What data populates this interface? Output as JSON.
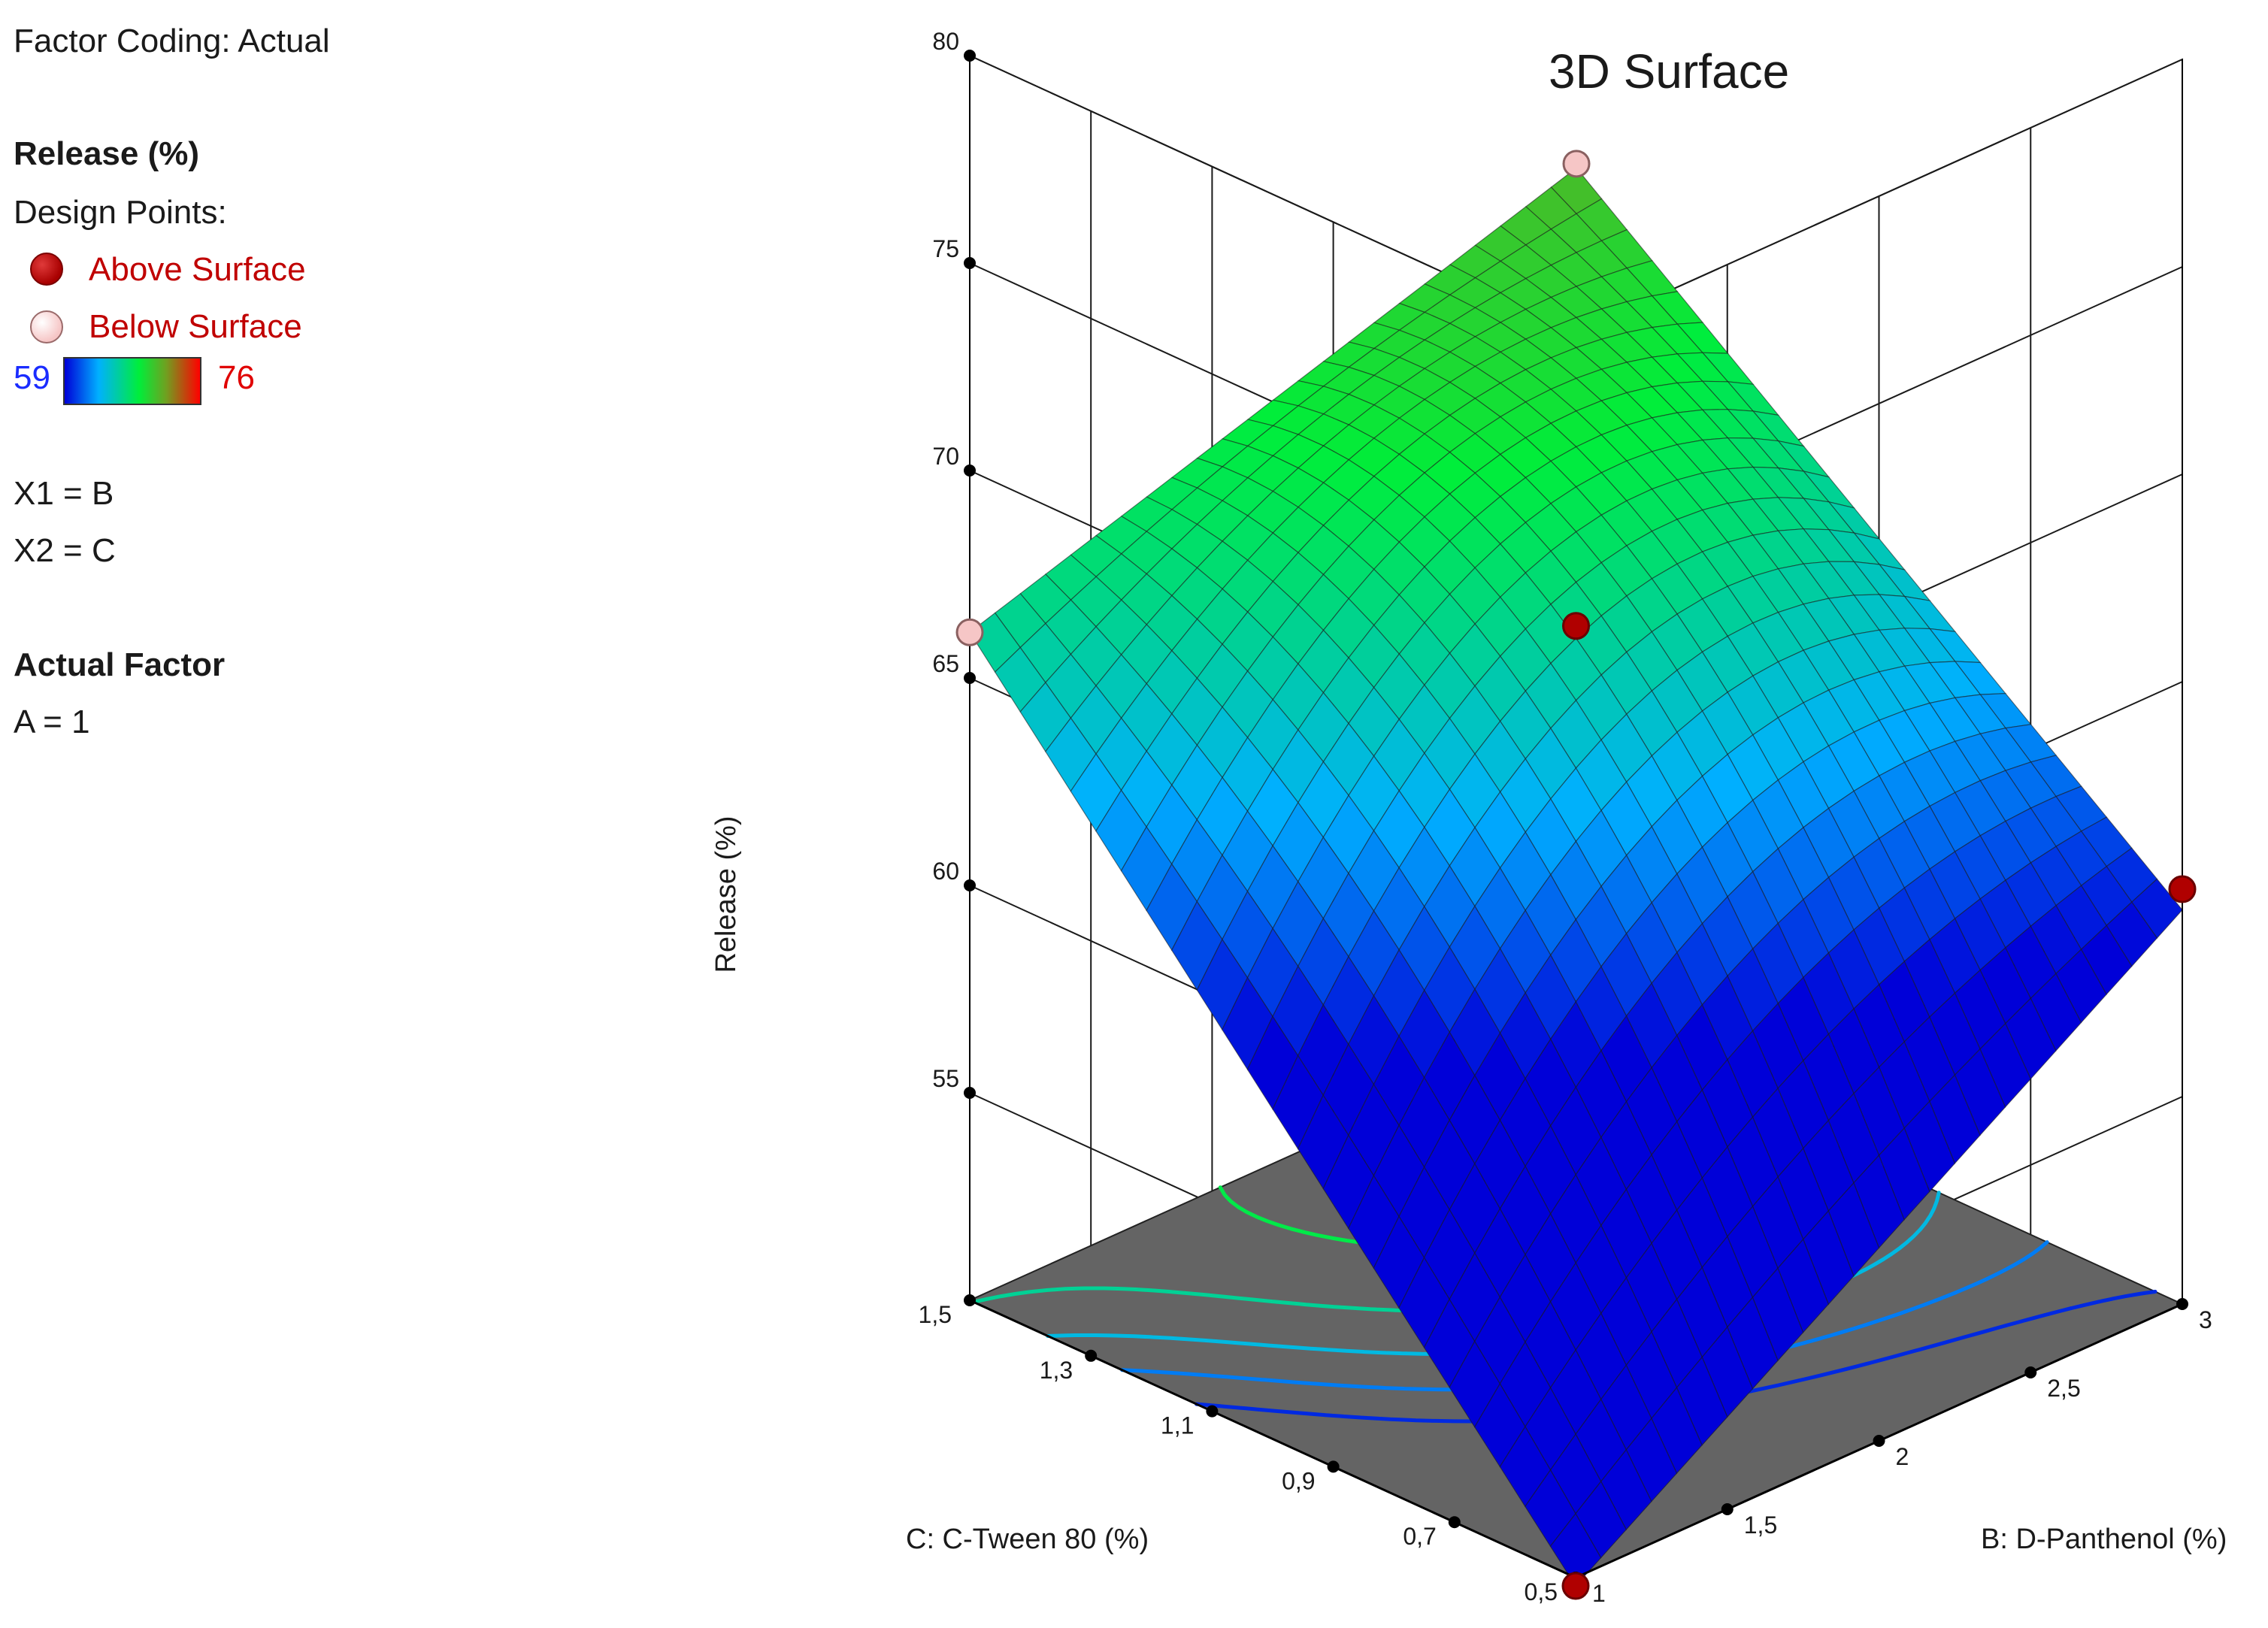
{
  "legend": {
    "factor_coding": "Factor Coding: Actual",
    "response_title": "Release (%)",
    "design_points_label": "Design Points:",
    "above_label": "Above Surface",
    "below_label": "Below Surface",
    "colorbar_min": "59",
    "colorbar_max": "76",
    "x1_def": "X1 = B",
    "x2_def": "X2 = C",
    "actual_factor_title": "Actual Factor",
    "actual_factor_value": "A = 1"
  },
  "colors": {
    "above_point": "#b00000",
    "below_point": "#f6c6c6",
    "floor": "#646464",
    "grid": "#1a1a1a",
    "surface_low": "#1a6cff",
    "surface_high": "#22e040"
  },
  "chart_data": {
    "type": "surface3d",
    "title": "3D Surface",
    "xlabel": "B: D-Panthenol (%)",
    "ylabel": "C: C-Tween 80 (%)",
    "zlabel": "Release (%)",
    "x_ticks": [
      "1",
      "1,5",
      "2",
      "2,5",
      "3"
    ],
    "y_ticks": [
      "0,5",
      "0,7",
      "0,9",
      "1,1",
      "1,3",
      "1,5"
    ],
    "z_ticks": [
      "55",
      "60",
      "65",
      "70",
      "75",
      "80"
    ],
    "xlim": [
      1,
      3
    ],
    "ylim": [
      0.5,
      1.5
    ],
    "zlim": [
      50,
      80
    ],
    "colorbar_range": [
      59,
      76
    ],
    "surface_corners": [
      {
        "x": 1,
        "y": 1.5,
        "z": 66.1
      },
      {
        "x": 1,
        "y": 0.5,
        "z": 49.8
      },
      {
        "x": 3,
        "y": 1.5,
        "z": 70.7
      },
      {
        "x": 3,
        "y": 0.5,
        "z": 59.5
      }
    ],
    "surface_center": {
      "x": 2,
      "y": 1.0,
      "z": 66
    },
    "design_points": [
      {
        "x": 1,
        "y": 1.5,
        "z": 66.1,
        "position": "below"
      },
      {
        "x": 1,
        "y": 0.5,
        "z": 49.8,
        "position": "above"
      },
      {
        "x": 3,
        "y": 1.5,
        "z": 70.8,
        "position": "below"
      },
      {
        "x": 3,
        "y": 0.5,
        "z": 60.0,
        "position": "above"
      },
      {
        "x": 2,
        "y": 1.0,
        "z": 66.3,
        "position": "above"
      }
    ],
    "grid": true
  }
}
